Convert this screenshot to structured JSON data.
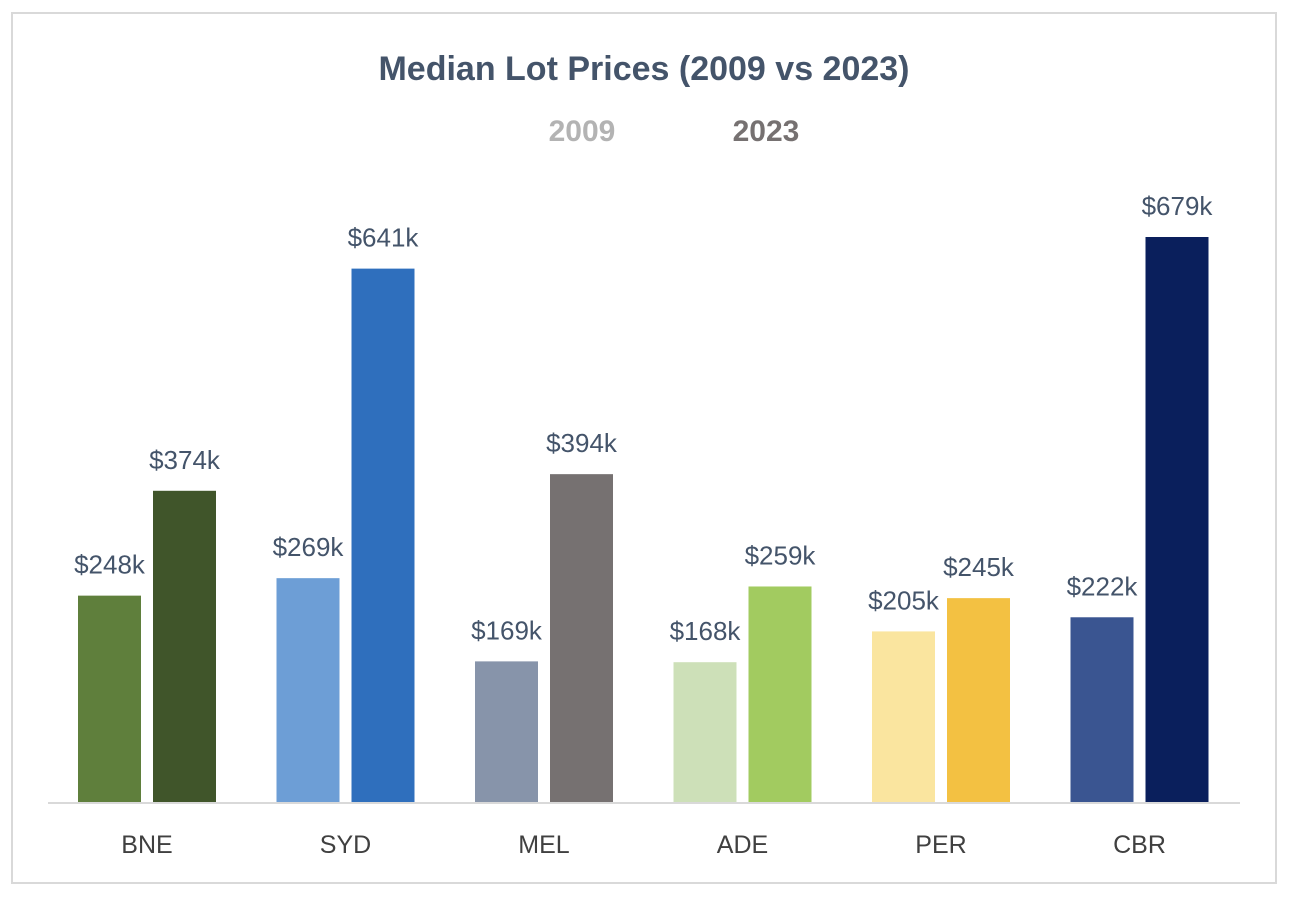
{
  "chart_data": {
    "type": "bar",
    "title": "Median Lot Prices (2009 vs 2023)",
    "xlabel": "",
    "ylabel": "",
    "categories": [
      "BNE",
      "SYD",
      "MEL",
      "ADE",
      "PER",
      "CBR"
    ],
    "series": [
      {
        "name": "2009",
        "values": [
          248,
          269,
          169,
          168,
          205,
          222
        ],
        "labels": [
          "$248k",
          "$269k",
          "$169k",
          "$168k",
          "$205k",
          "$222k"
        ],
        "colors": [
          "#5f7f3c",
          "#6d9ed6",
          "#8794aa",
          "#cde0b8",
          "#fae59f",
          "#3a5591"
        ]
      },
      {
        "name": "2023",
        "values": [
          374,
          641,
          394,
          259,
          245,
          679
        ],
        "labels": [
          "$374k",
          "$641k",
          "$394k",
          "$259k",
          "$245k",
          "$679k"
        ],
        "colors": [
          "#40552a",
          "#2f6fbd",
          "#767171",
          "#a2cb60",
          "#f3c142",
          "#0a1f5c"
        ]
      }
    ],
    "ylim": [
      0,
      679
    ],
    "grid": false,
    "legend_position": "top-center",
    "legend": [
      {
        "label": "2009",
        "color": "#b3b3b3"
      },
      {
        "label": "2023",
        "color": "#767171"
      }
    ],
    "axis_color": "#d9d9d9"
  }
}
